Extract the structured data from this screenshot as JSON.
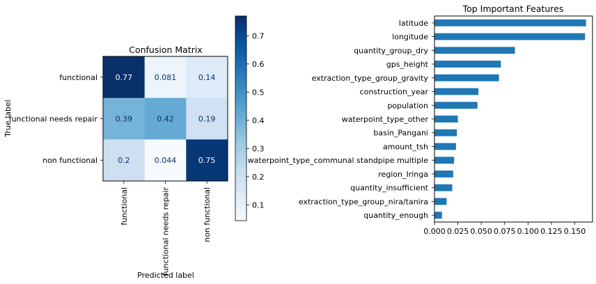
{
  "chart_data": [
    {
      "type": "heatmap",
      "title": "Confusion Matrix",
      "xlabel": "Predicted label",
      "ylabel": "True label",
      "row_labels": [
        "functional",
        "functional needs repair",
        "non functional"
      ],
      "col_labels": [
        "functional",
        "functional needs repair",
        "non functional"
      ],
      "values": [
        [
          0.77,
          0.081,
          0.14
        ],
        [
          0.39,
          0.42,
          0.19
        ],
        [
          0.2,
          0.044,
          0.75
        ]
      ],
      "cell_labels": [
        [
          "0.77",
          "0.081",
          "0.14"
        ],
        [
          "0.39",
          "0.42",
          "0.19"
        ],
        [
          "0.2",
          "0.044",
          "0.75"
        ]
      ],
      "colormap": "Blues",
      "colorbar": {
        "range": [
          0.044,
          0.77
        ],
        "ticks": [
          0.1,
          0.2,
          0.3,
          0.4,
          0.5,
          0.6,
          0.7
        ],
        "tick_labels": [
          "0.1",
          "0.2",
          "0.3",
          "0.4",
          "0.5",
          "0.6",
          "0.7"
        ]
      },
      "colors": {
        "low": "#f7fbff",
        "high": "#08306b"
      }
    },
    {
      "type": "bar",
      "orientation": "horizontal",
      "title": "Top Important Features",
      "categories": [
        "latitude",
        "longitude",
        "quantity_group_dry",
        "gps_height",
        "extraction_type_group_gravity",
        "construction_year",
        "population",
        "waterpoint_type_other",
        "basin_Pangani",
        "amount_tsh",
        "waterpoint_type_communal standpipe multiple",
        "region_Iringa",
        "quantity_insufficient",
        "extraction_type_group_nira/tanira",
        "quantity_enough"
      ],
      "values": [
        0.162,
        0.161,
        0.086,
        0.071,
        0.069,
        0.047,
        0.046,
        0.025,
        0.024,
        0.023,
        0.021,
        0.02,
        0.019,
        0.013,
        0.008
      ],
      "xlim": [
        0.0,
        0.169
      ],
      "xticks": [
        0.0,
        0.025,
        0.05,
        0.075,
        0.1,
        0.125,
        0.15
      ],
      "xtick_labels": [
        "0.000",
        "0.025",
        "0.050",
        "0.075",
        "0.100",
        "0.125",
        "0.150"
      ],
      "bar_color": "#1f77b4"
    }
  ]
}
